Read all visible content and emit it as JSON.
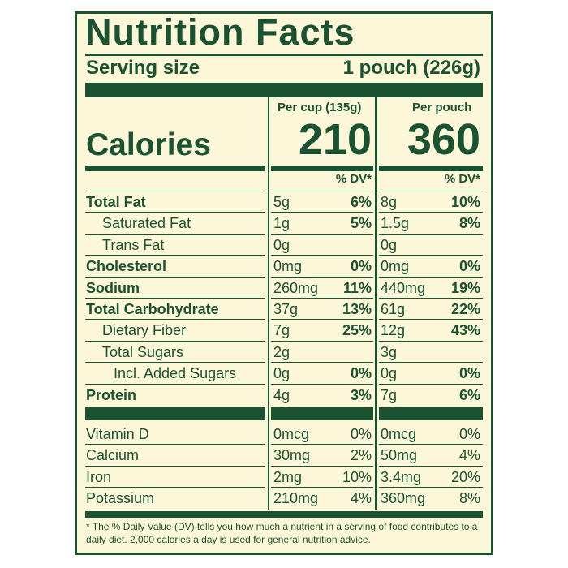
{
  "label": {
    "title": "Nutrition Facts",
    "serving_size_label": "Serving size",
    "serving_size_value": "1 pouch (226g)",
    "columns": [
      {
        "header": "Per cup (135g)",
        "calories": "210",
        "dv_header": "% DV*"
      },
      {
        "header": "Per pouch",
        "calories": "360",
        "dv_header": "% DV*"
      }
    ],
    "calories_label": "Calories",
    "nutrients": [
      {
        "name": "Total Fat",
        "bold": true,
        "indent": 0,
        "cup_amount": "5g",
        "cup_dv": "6%",
        "pouch_amount": "8g",
        "pouch_dv": "10%"
      },
      {
        "name": "Saturated Fat",
        "bold": false,
        "indent": 1,
        "cup_amount": "1g",
        "cup_dv": "5%",
        "pouch_amount": "1.5g",
        "pouch_dv": "8%"
      },
      {
        "name": "Trans Fat",
        "bold": false,
        "indent": 1,
        "cup_amount": "0g",
        "cup_dv": "",
        "pouch_amount": "0g",
        "pouch_dv": ""
      },
      {
        "name": "Cholesterol",
        "bold": true,
        "indent": 0,
        "cup_amount": "0mg",
        "cup_dv": "0%",
        "pouch_amount": "0mg",
        "pouch_dv": "0%"
      },
      {
        "name": "Sodium",
        "bold": true,
        "indent": 0,
        "cup_amount": "260mg",
        "cup_dv": "11%",
        "pouch_amount": "440mg",
        "pouch_dv": "19%"
      },
      {
        "name": "Total Carbohydrate",
        "bold": true,
        "indent": 0,
        "cup_amount": "37g",
        "cup_dv": "13%",
        "pouch_amount": "61g",
        "pouch_dv": "22%"
      },
      {
        "name": "Dietary Fiber",
        "bold": false,
        "indent": 1,
        "cup_amount": "7g",
        "cup_dv": "25%",
        "pouch_amount": "12g",
        "pouch_dv": "43%"
      },
      {
        "name": "Total Sugars",
        "bold": false,
        "indent": 1,
        "cup_amount": "2g",
        "cup_dv": "",
        "pouch_amount": "3g",
        "pouch_dv": ""
      },
      {
        "name": "Incl. Added Sugars",
        "bold": false,
        "indent": 2,
        "cup_amount": "0g",
        "cup_dv": "0%",
        "pouch_amount": "0g",
        "pouch_dv": "0%"
      },
      {
        "name": "Protein",
        "bold": true,
        "indent": 0,
        "cup_amount": "4g",
        "cup_dv": "3%",
        "pouch_amount": "7g",
        "pouch_dv": "6%"
      }
    ],
    "micronutrients": [
      {
        "name": "Vitamin D",
        "cup_amount": "0mcg",
        "cup_dv": "0%",
        "pouch_amount": "0mcg",
        "pouch_dv": "0%"
      },
      {
        "name": "Calcium",
        "cup_amount": "30mg",
        "cup_dv": "2%",
        "pouch_amount": "50mg",
        "pouch_dv": "4%"
      },
      {
        "name": "Iron",
        "cup_amount": "2mg",
        "cup_dv": "10%",
        "pouch_amount": "3.4mg",
        "pouch_dv": "20%"
      },
      {
        "name": "Potassium",
        "cup_amount": "210mg",
        "cup_dv": "4%",
        "pouch_amount": "360mg",
        "pouch_dv": "8%"
      }
    ],
    "footnote": "* The % Daily Value (DV) tells you how much a nutrient in a serving of food contributes to a daily diet. 2,000 calories a day is used for general nutrition advice.",
    "colors": {
      "ink": "#1a5232",
      "paper": "#fcf7d8"
    }
  }
}
